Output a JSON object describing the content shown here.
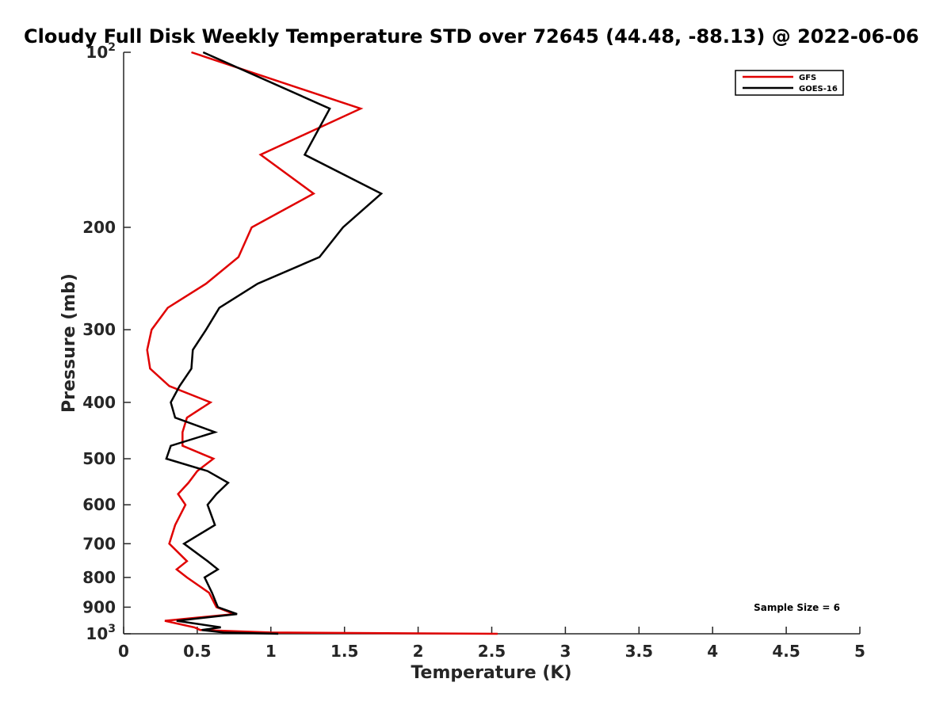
{
  "chart_data": {
    "type": "line",
    "title": "Cloudy Full Disk Weekly Temperature STD over 72645 (44.48, -88.13) @ 2022-06-06",
    "xlabel": "Temperature (K)",
    "ylabel": "Pressure (mb)",
    "xlim": [
      0,
      5
    ],
    "ylim": [
      100,
      1000
    ],
    "y_scale": "log",
    "y_reversed": true,
    "grid": false,
    "legend_position": "top-right",
    "x_ticks": [
      {
        "value": 0,
        "label": "0"
      },
      {
        "value": 0.5,
        "label": "0.5"
      },
      {
        "value": 1,
        "label": "1"
      },
      {
        "value": 1.5,
        "label": "1.5"
      },
      {
        "value": 2,
        "label": "2"
      },
      {
        "value": 2.5,
        "label": "2.5"
      },
      {
        "value": 3,
        "label": "3"
      },
      {
        "value": 3.5,
        "label": "3.5"
      },
      {
        "value": 4,
        "label": "4"
      },
      {
        "value": 4.5,
        "label": "4.5"
      },
      {
        "value": 5,
        "label": "5"
      }
    ],
    "y_ticks": [
      {
        "value": 100,
        "label": "10",
        "sup": "2"
      },
      {
        "value": 200,
        "label": "200"
      },
      {
        "value": 300,
        "label": "300"
      },
      {
        "value": 400,
        "label": "400"
      },
      {
        "value": 500,
        "label": "500"
      },
      {
        "value": 600,
        "label": "600"
      },
      {
        "value": 700,
        "label": "700"
      },
      {
        "value": 800,
        "label": "800"
      },
      {
        "value": 900,
        "label": "900"
      },
      {
        "value": 1000,
        "label": "10",
        "sup": "3"
      }
    ],
    "annotation": "Sample Size = 6",
    "series": [
      {
        "name": "GFS",
        "color": "#e00000",
        "points": [
          [
            0.46,
            100
          ],
          [
            1.61,
            125
          ],
          [
            0.93,
            150
          ],
          [
            1.29,
            175
          ],
          [
            0.87,
            200
          ],
          [
            0.78,
            225
          ],
          [
            0.56,
            250
          ],
          [
            0.3,
            275
          ],
          [
            0.19,
            300
          ],
          [
            0.16,
            325
          ],
          [
            0.18,
            350
          ],
          [
            0.31,
            375
          ],
          [
            0.59,
            400
          ],
          [
            0.43,
            425
          ],
          [
            0.4,
            450
          ],
          [
            0.4,
            475
          ],
          [
            0.61,
            500
          ],
          [
            0.5,
            525
          ],
          [
            0.44,
            550
          ],
          [
            0.37,
            575
          ],
          [
            0.42,
            600
          ],
          [
            0.35,
            650
          ],
          [
            0.31,
            700
          ],
          [
            0.43,
            750
          ],
          [
            0.36,
            775
          ],
          [
            0.43,
            800
          ],
          [
            0.58,
            850
          ],
          [
            0.63,
            900
          ],
          [
            0.75,
            925
          ],
          [
            0.28,
            950
          ],
          [
            0.48,
            975
          ],
          [
            0.52,
            985
          ],
          [
            1.0,
            995
          ],
          [
            2.54,
            1000
          ]
        ]
      },
      {
        "name": "GOES-16",
        "color": "#000000",
        "points": [
          [
            0.54,
            100
          ],
          [
            1.4,
            125
          ],
          [
            1.23,
            150
          ],
          [
            1.75,
            175
          ],
          [
            1.49,
            200
          ],
          [
            1.33,
            225
          ],
          [
            0.91,
            250
          ],
          [
            0.65,
            275
          ],
          [
            0.56,
            300
          ],
          [
            0.47,
            325
          ],
          [
            0.46,
            350
          ],
          [
            0.38,
            375
          ],
          [
            0.32,
            400
          ],
          [
            0.35,
            425
          ],
          [
            0.62,
            450
          ],
          [
            0.32,
            475
          ],
          [
            0.29,
            500
          ],
          [
            0.57,
            525
          ],
          [
            0.71,
            550
          ],
          [
            0.63,
            575
          ],
          [
            0.57,
            600
          ],
          [
            0.62,
            650
          ],
          [
            0.41,
            700
          ],
          [
            0.57,
            750
          ],
          [
            0.64,
            775
          ],
          [
            0.55,
            800
          ],
          [
            0.6,
            850
          ],
          [
            0.64,
            900
          ],
          [
            0.77,
            925
          ],
          [
            0.36,
            950
          ],
          [
            0.66,
            975
          ],
          [
            0.53,
            985
          ],
          [
            0.68,
            995
          ],
          [
            1.05,
            1000
          ]
        ]
      }
    ]
  }
}
